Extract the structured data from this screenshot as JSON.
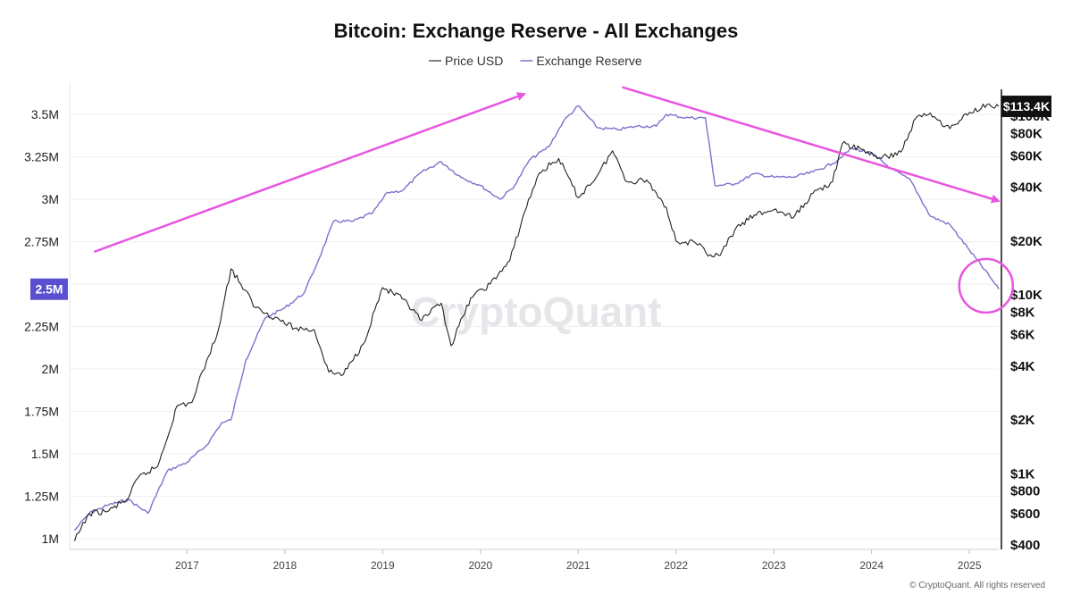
{
  "chart_data": {
    "type": "line",
    "title": "Bitcoin: Exchange Reserve - All Exchanges",
    "legend": [
      {
        "name": "Price USD",
        "color": "#555555"
      },
      {
        "name": "Exchange Reserve",
        "color": "#7b72cc"
      }
    ],
    "legend_position": "top-center",
    "grid": true,
    "x_ticks": [
      "2017",
      "2018",
      "2019",
      "2020",
      "2021",
      "2022",
      "2023",
      "2024",
      "2025"
    ],
    "xlim": [
      2016.3,
      2025.8
    ],
    "left_axis": {
      "ticks": [
        "3.5M",
        "3.25M",
        "3M",
        "2.75M",
        "2.5M",
        "2.25M",
        "2M",
        "1.75M",
        "1.5M",
        "1.25M",
        "1M"
      ],
      "tick_values": [
        3500000,
        3250000,
        3000000,
        2750000,
        2500000,
        2250000,
        2000000,
        1750000,
        1500000,
        1250000,
        1000000
      ],
      "current_label": "2.5M",
      "current_label_color": "#5a4fd1"
    },
    "right_axis": {
      "scale": "log",
      "ticks": [
        "$100K",
        "$80K",
        "$60K",
        "$40K",
        "$20K",
        "$10K",
        "$8K",
        "$6K",
        "$4K",
        "$2K",
        "$1K",
        "$800",
        "$600",
        "$400"
      ],
      "tick_values": [
        100000,
        80000,
        60000,
        40000,
        20000,
        10000,
        8000,
        6000,
        4000,
        2000,
        1000,
        800,
        600,
        400
      ],
      "current_label": "$113.4K"
    },
    "series": [
      {
        "name": "Exchange Reserve",
        "axis": "left",
        "color": "#7b72cc",
        "x": [
          2016.35,
          2016.5,
          2016.7,
          2016.9,
          2017.1,
          2017.3,
          2017.5,
          2017.7,
          2017.85,
          2017.95,
          2018.1,
          2018.3,
          2018.5,
          2018.7,
          2018.85,
          2019.0,
          2019.2,
          2019.4,
          2019.55,
          2019.7,
          2019.9,
          2020.1,
          2020.3,
          2020.5,
          2020.7,
          2020.85,
          2021.0,
          2021.2,
          2021.35,
          2021.5,
          2021.7,
          2021.9,
          2022.1,
          2022.3,
          2022.4,
          2022.6,
          2022.8,
          2022.9,
          2023.1,
          2023.3,
          2023.5,
          2023.7,
          2023.9,
          2024.1,
          2024.3,
          2024.5,
          2024.7,
          2024.9,
          2025.1,
          2025.3,
          2025.5,
          2025.7,
          2025.8
        ],
        "values": [
          1050000,
          1150000,
          1200000,
          1230000,
          1150000,
          1400000,
          1450000,
          1550000,
          1680000,
          1700000,
          2050000,
          2300000,
          2360000,
          2450000,
          2650000,
          2870000,
          2870000,
          2920000,
          3040000,
          3050000,
          3160000,
          3220000,
          3130000,
          3080000,
          3000000,
          3080000,
          3230000,
          3310000,
          3460000,
          3550000,
          3420000,
          3410000,
          3430000,
          3430000,
          3500000,
          3480000,
          3480000,
          3080000,
          3090000,
          3150000,
          3130000,
          3130000,
          3160000,
          3210000,
          3300000,
          3270000,
          3180000,
          3110000,
          2900000,
          2850000,
          2700000,
          2550000,
          2470000
        ]
      },
      {
        "name": "Price USD",
        "axis": "right",
        "color": "#222222",
        "x": [
          2016.35,
          2016.5,
          2016.7,
          2016.9,
          2017.0,
          2017.2,
          2017.4,
          2017.55,
          2017.7,
          2017.8,
          2017.95,
          2018.05,
          2018.2,
          2018.4,
          2018.6,
          2018.8,
          2018.95,
          2019.1,
          2019.3,
          2019.5,
          2019.7,
          2019.9,
          2020.1,
          2020.2,
          2020.4,
          2020.6,
          2020.8,
          2020.95,
          2021.1,
          2021.3,
          2021.5,
          2021.7,
          2021.85,
          2022.0,
          2022.2,
          2022.4,
          2022.5,
          2022.7,
          2022.85,
          2022.95,
          2023.1,
          2023.3,
          2023.5,
          2023.7,
          2023.9,
          2024.1,
          2024.2,
          2024.4,
          2024.6,
          2024.8,
          2024.95,
          2025.1,
          2025.3,
          2025.5,
          2025.7,
          2025.8
        ],
        "values": [
          420,
          600,
          620,
          730,
          950,
          1100,
          2400,
          2500,
          4300,
          5800,
          14000,
          11500,
          8500,
          7500,
          6500,
          6400,
          3700,
          3600,
          5300,
          11000,
          9500,
          7200,
          9000,
          5200,
          9600,
          11500,
          15500,
          29000,
          48000,
          58000,
          35000,
          47000,
          64000,
          43000,
          44000,
          31000,
          20000,
          19500,
          16800,
          16600,
          23000,
          28000,
          30000,
          27000,
          37000,
          43000,
          70000,
          65000,
          58000,
          63000,
          97000,
          104000,
          85000,
          105000,
          117000,
          113400
        ]
      }
    ],
    "annotations": [
      {
        "type": "arrow",
        "color": "#e855e0",
        "from": [
          2016.55,
          2690000
        ],
        "to": [
          2020.95,
          3620000
        ]
      },
      {
        "type": "arrow",
        "color": "#e855e0",
        "from": [
          2021.95,
          3660000
        ],
        "to": [
          2025.8,
          2990000
        ]
      },
      {
        "type": "circle",
        "color": "#e855e0",
        "center": [
          2025.67,
          2490000
        ]
      }
    ]
  },
  "watermark": "CryptoQuant",
  "copyright": "© CryptoQuant. All rights reserved"
}
